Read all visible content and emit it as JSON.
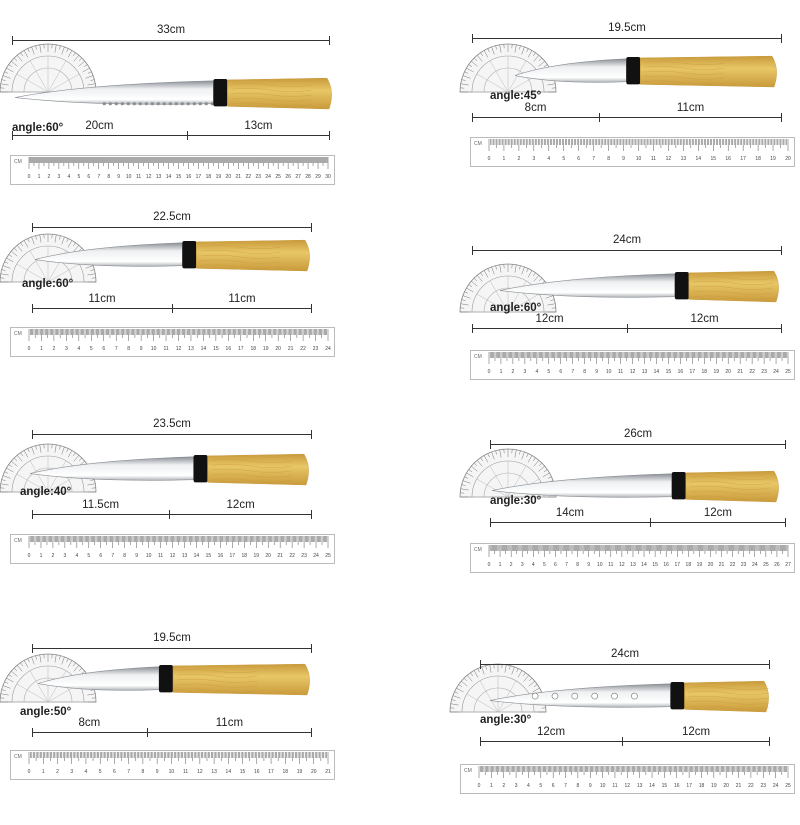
{
  "knives": [
    {
      "id": "k1",
      "total": "33cm",
      "blade": "20cm",
      "handle": "13cm",
      "angle": "angle:60°",
      "serrated": true,
      "holes": false,
      "ruler_max": 30
    },
    {
      "id": "k2",
      "total": "19.5cm",
      "blade": "8cm",
      "handle": "11cm",
      "angle": "angle:45°",
      "serrated": false,
      "holes": false,
      "ruler_max": 20
    },
    {
      "id": "k3",
      "total": "22.5cm",
      "blade": "11cm",
      "handle": "11cm",
      "angle": "angle:60°",
      "serrated": false,
      "holes": false,
      "ruler_max": 24
    },
    {
      "id": "k4",
      "total": "24cm",
      "blade": "12cm",
      "handle": "12cm",
      "angle": "angle:60°",
      "serrated": false,
      "holes": false,
      "ruler_max": 25
    },
    {
      "id": "k5",
      "total": "23.5cm",
      "blade": "11.5cm",
      "handle": "12cm",
      "angle": "angle:40°",
      "serrated": false,
      "holes": false,
      "ruler_max": 25
    },
    {
      "id": "k6",
      "total": "26cm",
      "blade": "14cm",
      "handle": "12cm",
      "angle": "angle:30°",
      "serrated": false,
      "holes": false,
      "ruler_max": 27
    },
    {
      "id": "k7",
      "total": "19.5cm",
      "blade": "8cm",
      "handle": "11cm",
      "angle": "angle:50°",
      "serrated": false,
      "holes": false,
      "ruler_max": 21
    },
    {
      "id": "k8",
      "total": "24cm",
      "blade": "12cm",
      "handle": "12cm",
      "angle": "angle:30°",
      "serrated": false,
      "holes": true,
      "ruler_max": 25
    }
  ],
  "ruler_unit": "CM",
  "colors": {
    "handle": "#e8c766",
    "handle_dark": "#c99a3c",
    "bolster": "#111111",
    "blade_light": "#eef0f2",
    "blade_dark": "#8a8f95",
    "line": "#333333"
  }
}
